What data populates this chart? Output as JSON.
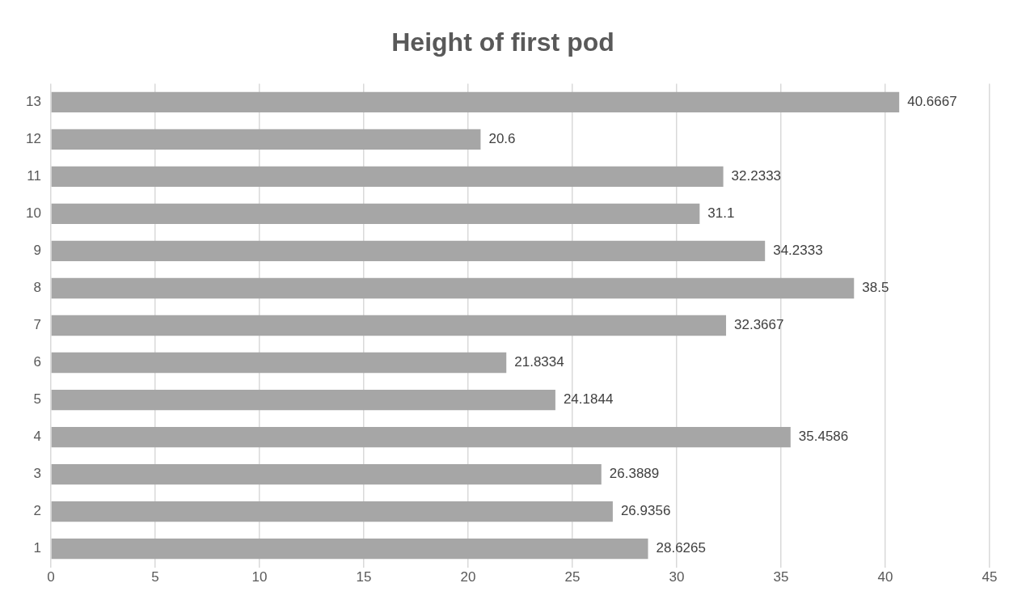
{
  "chart_data": {
    "type": "bar",
    "orientation": "horizontal",
    "title": "Height of first pod",
    "categories": [
      "13",
      "12",
      "11",
      "10",
      "9",
      "8",
      "7",
      "6",
      "5",
      "4",
      "3",
      "2",
      "1"
    ],
    "values": [
      40.6667,
      20.6,
      32.2333,
      31.1,
      34.2333,
      38.5,
      32.3667,
      21.8334,
      24.1844,
      35.4586,
      26.3889,
      26.9356,
      28.6265
    ],
    "color": "#a6a6a6",
    "xlim": [
      0,
      45
    ],
    "xticks": [
      0,
      5,
      10,
      15,
      20,
      25,
      30,
      35,
      40,
      45
    ],
    "grid": "x",
    "data_labels": true
  }
}
